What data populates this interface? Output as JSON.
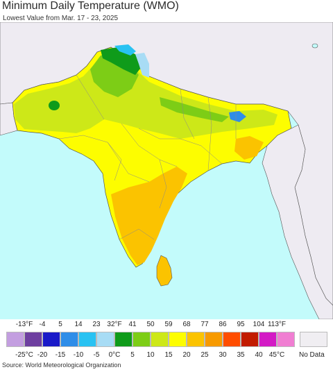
{
  "header": {
    "title": "Minimum Daily Temperature (WMO)",
    "subtitle": "Lowest Value from Mar. 17 - 23, 2025"
  },
  "legend": {
    "fahrenheit_labels": [
      "-13°F",
      "-4",
      "5",
      "14",
      "23",
      "32°F",
      "41",
      "50",
      "59",
      "68",
      "77",
      "86",
      "95",
      "104",
      "113°F"
    ],
    "celsius_labels": [
      "-25°C",
      "-20",
      "-15",
      "-10",
      "-5",
      "0°C",
      "5",
      "10",
      "15",
      "20",
      "25",
      "30",
      "35",
      "40",
      "45°C"
    ],
    "colors": [
      "#c39ee0",
      "#6e3fa0",
      "#1a1ac8",
      "#2f8de8",
      "#29c2f2",
      "#a8dcf5",
      "#0f9b1a",
      "#7dcd16",
      "#cde818",
      "#fdfd00",
      "#fbc300",
      "#f79a00",
      "#ff4d00",
      "#c21b00",
      "#d31ac5",
      "#f07ed2"
    ],
    "no_data_label": "No Data",
    "no_data_color": "#f0eef2"
  },
  "map": {
    "ocean_color": "#c3fbfb",
    "land_nodata_color": "#eeebf2",
    "border_color": "#555555"
  },
  "footer": {
    "source": "Source: World Meteorological Organization"
  }
}
